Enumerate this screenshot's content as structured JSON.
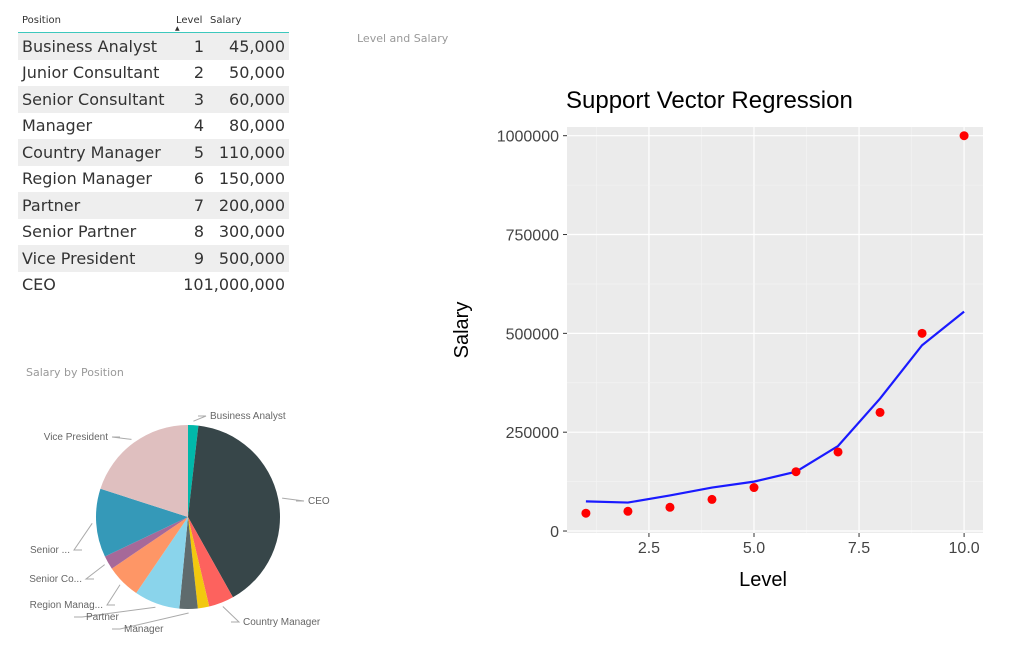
{
  "table": {
    "headers": {
      "position": "Position",
      "level": "Level",
      "salary": "Salary"
    },
    "rows": [
      {
        "position": "Business Analyst",
        "level": "1",
        "salary": "45,000"
      },
      {
        "position": "Junior Consultant",
        "level": "2",
        "salary": "50,000"
      },
      {
        "position": "Senior Consultant",
        "level": "3",
        "salary": "60,000"
      },
      {
        "position": "Manager",
        "level": "4",
        "salary": "80,000"
      },
      {
        "position": "Country Manager",
        "level": "5",
        "salary": "110,000"
      },
      {
        "position": "Region Manager",
        "level": "6",
        "salary": "150,000"
      },
      {
        "position": "Partner",
        "level": "7",
        "salary": "200,000"
      },
      {
        "position": "Senior Partner",
        "level": "8",
        "salary": "300,000"
      },
      {
        "position": "Vice President",
        "level": "9",
        "salary": "500,000"
      },
      {
        "position": "CEO",
        "level": "10",
        "salary": "1,000,000"
      }
    ]
  },
  "visual_titles": {
    "level_salary": "Level and Salary",
    "salary_by_position": "Salary by Position"
  },
  "chart_data": [
    {
      "type": "pie",
      "title": "Salary by Position",
      "slices": [
        {
          "name": "Business Analyst",
          "label": "Business Analyst",
          "value": 45000,
          "color": "#01b8aa"
        },
        {
          "name": "CEO",
          "label": "CEO",
          "value": 1000000,
          "color": "#374649"
        },
        {
          "name": "Country Manager",
          "label": "Country Manager",
          "value": 110000,
          "color": "#fd625e"
        },
        {
          "name": "Junior Consultant",
          "label": "",
          "value": 50000,
          "color": "#f2c80f"
        },
        {
          "name": "Manager",
          "label": "Manager",
          "value": 80000,
          "color": "#5f6b6d"
        },
        {
          "name": "Partner",
          "label": "Partner",
          "value": 200000,
          "color": "#8ad4eb"
        },
        {
          "name": "Region Manager",
          "label": "Region Manag...",
          "value": 150000,
          "color": "#fe9666"
        },
        {
          "name": "Senior Consultant",
          "label": "Senior Co...",
          "value": 60000,
          "color": "#a66999"
        },
        {
          "name": "Senior Partner",
          "label": "Senior ...",
          "value": 300000,
          "color": "#3599b8"
        },
        {
          "name": "Vice President",
          "label": "Vice President",
          "value": 500000,
          "color": "#dfbfbf"
        }
      ]
    },
    {
      "type": "scatter+line",
      "title": "Support Vector Regression",
      "xlabel": "Level",
      "ylabel": "Salary",
      "xlim": [
        0.55,
        10.45
      ],
      "ylim": [
        -5000,
        1022000
      ],
      "xticks": [
        "2.5",
        "5.0",
        "7.5",
        "10.0"
      ],
      "xtick_values": [
        2.5,
        5,
        7.5,
        10
      ],
      "yticks": [
        "0",
        "250000",
        "500000",
        "750000",
        "1000000"
      ],
      "ytick_values": [
        0,
        250000,
        500000,
        750000,
        1000000
      ],
      "points": {
        "x": [
          1,
          2,
          3,
          4,
          5,
          6,
          7,
          8,
          9,
          10
        ],
        "y": [
          45000,
          50000,
          60000,
          80000,
          110000,
          150000,
          200000,
          300000,
          500000,
          1000000
        ],
        "color": "#ff0000"
      },
      "line": {
        "x": [
          1,
          2,
          3,
          4,
          5,
          6,
          7,
          8,
          9,
          10
        ],
        "y": [
          75000,
          72000,
          90000,
          110000,
          125000,
          150000,
          215000,
          335000,
          470000,
          555000
        ],
        "color": "#1a1aff"
      }
    }
  ]
}
